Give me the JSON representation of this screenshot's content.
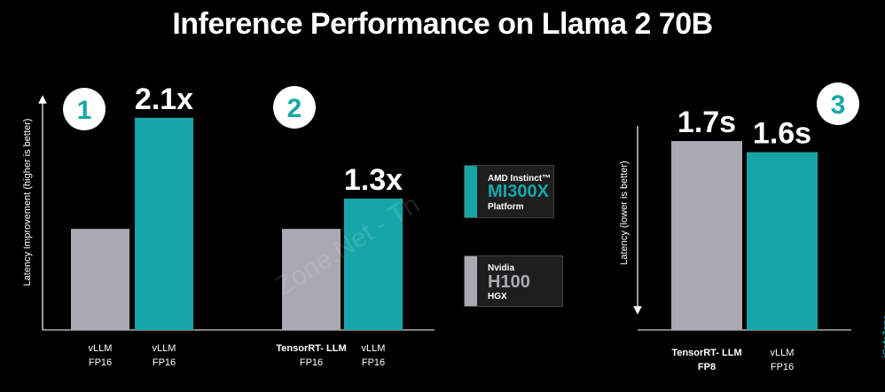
{
  "title": "Inference Performance on Llama 2 70B",
  "colors": {
    "amd": "#17a6a8",
    "nvidia": "#a9a9b2",
    "background": "#000000"
  },
  "chart_data": [
    {
      "type": "bar",
      "panel": "1",
      "ylabel": "Latency Improvement (higher is better)",
      "categories": [
        [
          "vLLM",
          "FP16"
        ],
        [
          "vLLM",
          "FP16"
        ]
      ],
      "values": [
        1.0,
        2.1
      ],
      "value_labels": [
        "",
        "2.1x"
      ],
      "ylim": [
        0,
        2.3
      ],
      "colors": [
        "#a9a9b2",
        "#17a6a8"
      ]
    },
    {
      "type": "bar",
      "panel": "2",
      "categories": [
        [
          "TensorRT- LLM",
          "FP16"
        ],
        [
          "vLLM",
          "FP16"
        ]
      ],
      "values": [
        1.0,
        1.3
      ],
      "value_labels": [
        "",
        "1.3x"
      ],
      "ylim": [
        0,
        2.3
      ],
      "colors": [
        "#a9a9b2",
        "#17a6a8"
      ]
    },
    {
      "type": "bar",
      "panel": "3",
      "ylabel": "Latency (lower is better)",
      "categories": [
        [
          "TensorRT- LLM",
          "FP8"
        ],
        [
          "vLLM",
          "FP16"
        ]
      ],
      "values": [
        1.7,
        1.6
      ],
      "value_labels": [
        "1.7s",
        "1.6s"
      ],
      "ylim": [
        0,
        1.9
      ],
      "colors": [
        "#a9a9b2",
        "#17a6a8"
      ]
    }
  ],
  "legend": [
    {
      "line1": "AMD Instinct™",
      "line2": "MI300X",
      "line3": "Platform",
      "color": "#17a6a8"
    },
    {
      "line1": "Nvidia",
      "line2": "H100",
      "line3": "HGX",
      "color": "#a9a9b2"
    }
  ],
  "watermark": "Zone.Net - Th",
  "corner_watermark": "iCafeZone"
}
